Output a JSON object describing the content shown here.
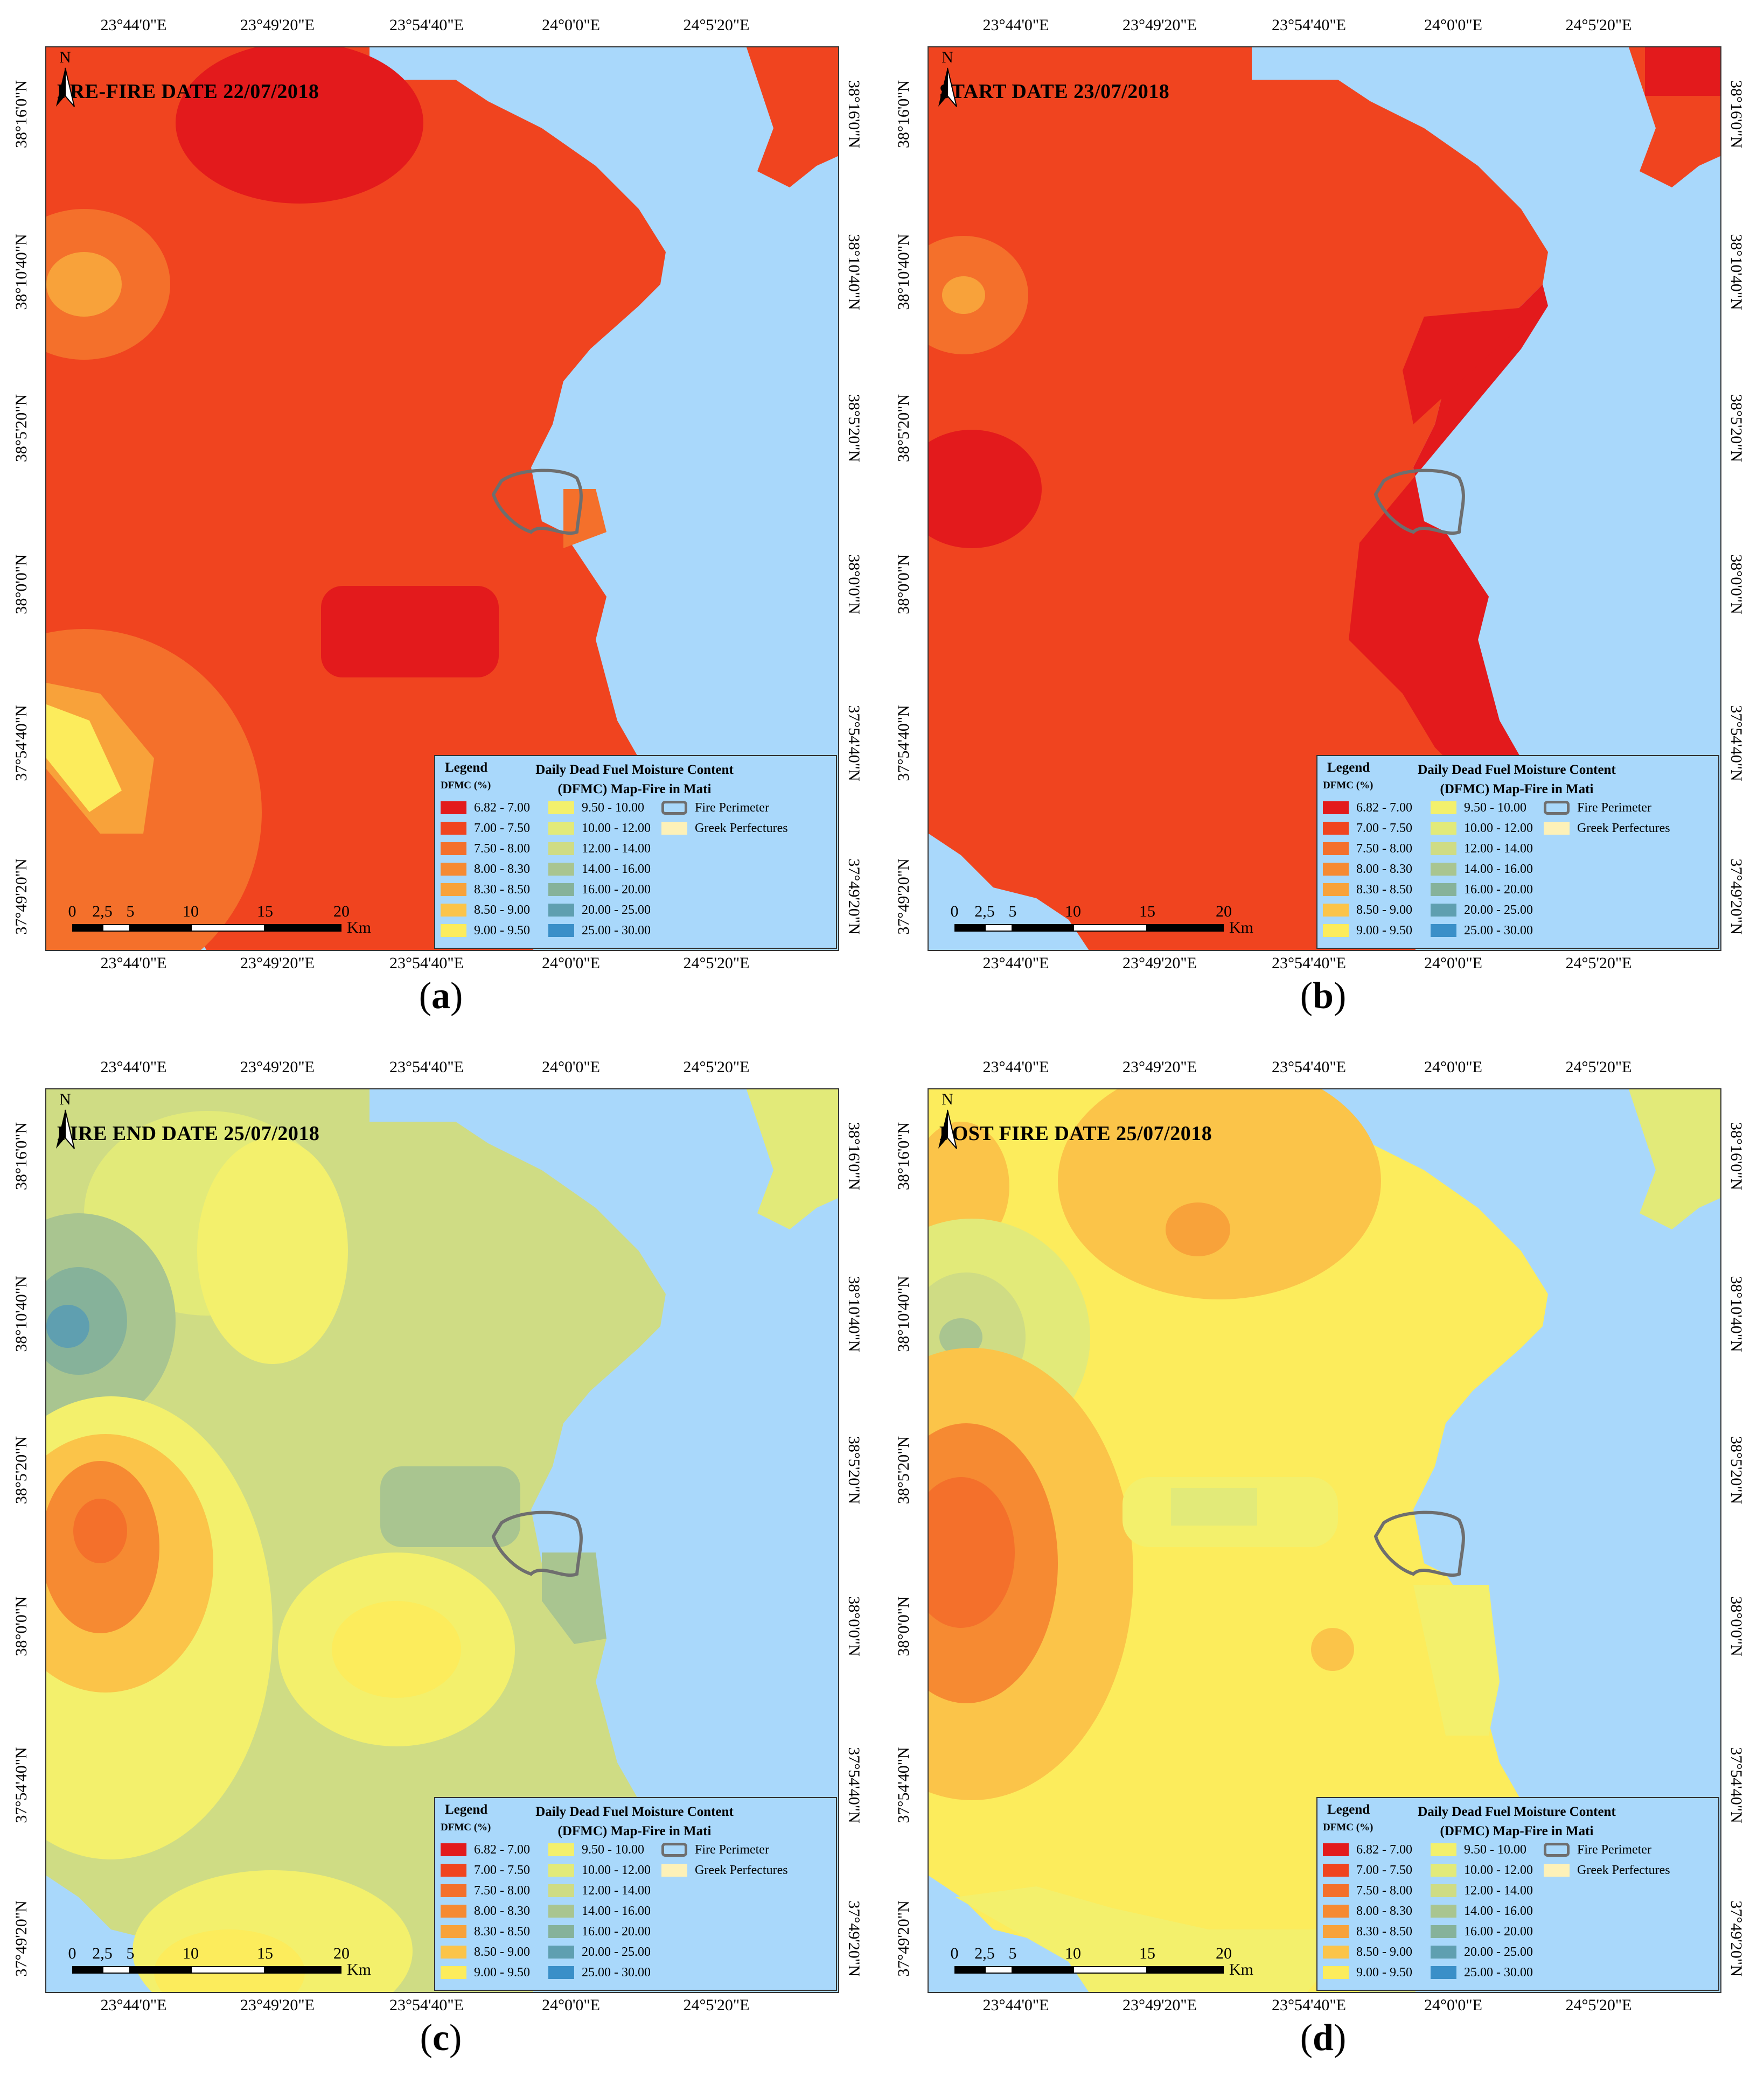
{
  "figure": {
    "longitude_labels": [
      "23°44'0\"E",
      "23°49'20\"E",
      "23°54'40\"E",
      "24°0'0\"E",
      "24°5'20\"E"
    ],
    "latitude_labels": [
      "38°16'0\"N",
      "38°10'40\"N",
      "38°5'20\"N",
      "38°0'0\"N",
      "37°54'40\"N",
      "37°49'20\"N"
    ],
    "legend": {
      "title": "Legend",
      "unit_label": "DFMC (%)",
      "heading_line1": "Daily Dead Fuel Moisture Content",
      "heading_line2": "(DFMC) Map-Fire in Mati",
      "classes": [
        {
          "label": "6.82 - 7.00",
          "color": "#e31a1c"
        },
        {
          "label": "7.00 - 7.50",
          "color": "#f0441f"
        },
        {
          "label": "7.50 - 8.00",
          "color": "#f4702b"
        },
        {
          "label": "8.00 - 8.30",
          "color": "#f68a32"
        },
        {
          "label": "8.30 - 8.50",
          "color": "#f8a23a"
        },
        {
          "label": "8.50 - 9.00",
          "color": "#fbc449"
        },
        {
          "label": "9.00 - 9.50",
          "color": "#fcec5c"
        },
        {
          "label": "9.50 - 10.00",
          "color": "#f3f06c"
        },
        {
          "label": "10.00 - 12.00",
          "color": "#e2ea79"
        },
        {
          "label": "12.00 - 14.00",
          "color": "#cfdc84"
        },
        {
          "label": "14.00 - 16.00",
          "color": "#a9c590"
        },
        {
          "label": "16.00 - 20.00",
          "color": "#86b29a"
        },
        {
          "label": "20.00 - 25.00",
          "color": "#5f9fb0"
        },
        {
          "label": "25.00 - 30.00",
          "color": "#3a8fc8"
        }
      ],
      "fire_perimeter_label": "Fire Perimeter",
      "greek_perfectures_label": "Greek Perfectures",
      "greek_perfectures_color": "#fdf1b8"
    },
    "scale": {
      "ticks": [
        "0",
        "2,5",
        "5",
        "10",
        "15",
        "20"
      ],
      "unit": "Km"
    },
    "north_label": "N",
    "sea_color": "#a9d8fb"
  },
  "panels": [
    {
      "id": "a",
      "title": "PRE-FIRE DATE 22/07/2018",
      "caption_letter": "a"
    },
    {
      "id": "b",
      "title": "START DATE 23/07/2018",
      "caption_letter": "b"
    },
    {
      "id": "c",
      "title": "FIRE END DATE 25/07/2018",
      "caption_letter": "c"
    },
    {
      "id": "d",
      "title": "POST FIRE DATE 25/07/2018",
      "caption_letter": "d"
    }
  ]
}
